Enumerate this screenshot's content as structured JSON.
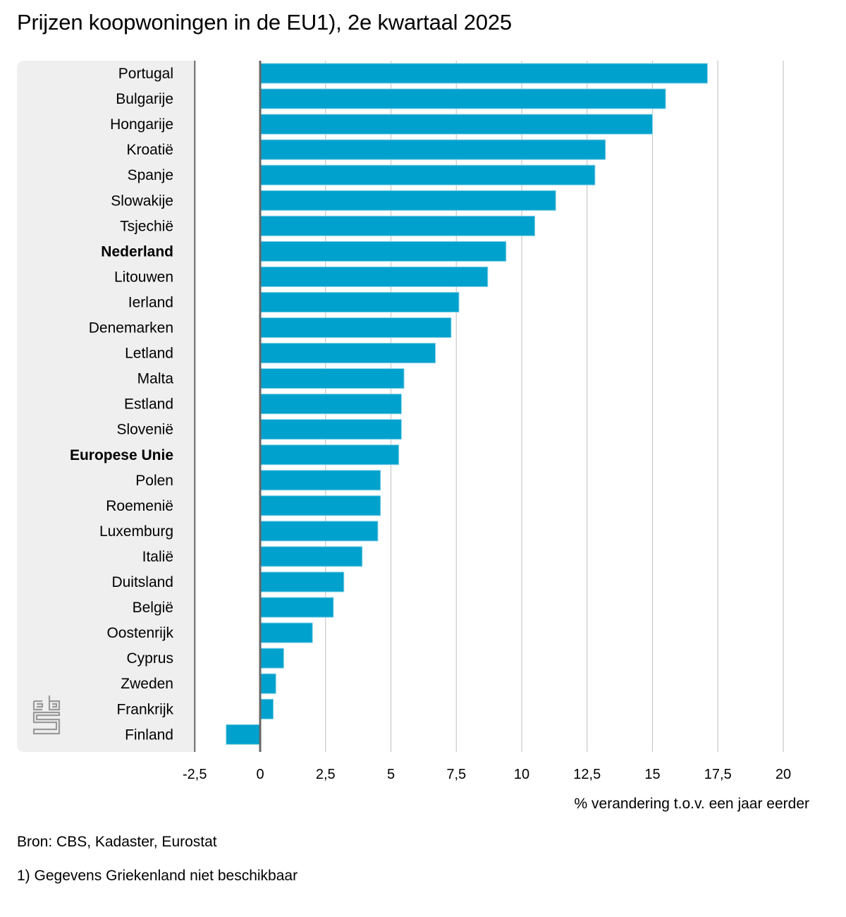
{
  "title": "Prijzen koopwoningen in de EU1), 2e kwartaal 2025",
  "source": "Bron: CBS, Kadaster, Eurostat",
  "footnote": "1) Gegevens Griekenland niet beschikbaar",
  "logo": "cbs-logo-icon",
  "colors": {
    "bar": "#00a1cd",
    "bar_edge": "#7fd0e6",
    "grid": "#c8c8c8",
    "axis": "#666666",
    "panel": "#efefef"
  },
  "chart_data": {
    "type": "bar",
    "orientation": "horizontal",
    "title": "Prijzen koopwoningen in de EU1), 2e kwartaal 2025",
    "xlabel": "% verandering t.o.v. een jaar eerder",
    "ylabel": "",
    "xlim": [
      -2.5,
      20
    ],
    "xticks": [
      -2.5,
      0,
      2.5,
      5,
      7.5,
      10,
      12.5,
      15,
      17.5,
      20
    ],
    "xtick_labels": [
      "-2,5",
      "0",
      "2,5",
      "5",
      "7,5",
      "10",
      "12,5",
      "15",
      "17,5",
      "20"
    ],
    "grid": true,
    "categories": [
      "Portugal",
      "Bulgarije",
      "Hongarije",
      "Kroatië",
      "Spanje",
      "Slowakije",
      "Tsjechië",
      "Nederland",
      "Litouwen",
      "Ierland",
      "Denemarken",
      "Letland",
      "Malta",
      "Estland",
      "Slovenië",
      "Europese Unie",
      "Polen",
      "Roemenië",
      "Luxemburg",
      "Italië",
      "Duitsland",
      "België",
      "Oostenrijk",
      "Cyprus",
      "Zweden",
      "Frankrijk",
      "Finland"
    ],
    "bold_categories": [
      "Nederland",
      "Europese Unie"
    ],
    "values": [
      17.1,
      15.5,
      15.0,
      13.2,
      12.8,
      11.3,
      10.5,
      9.4,
      8.7,
      7.6,
      7.3,
      6.7,
      5.5,
      5.4,
      5.4,
      5.3,
      4.6,
      4.6,
      4.5,
      3.9,
      3.2,
      2.8,
      2.0,
      0.9,
      0.6,
      0.5,
      -1.3
    ]
  }
}
